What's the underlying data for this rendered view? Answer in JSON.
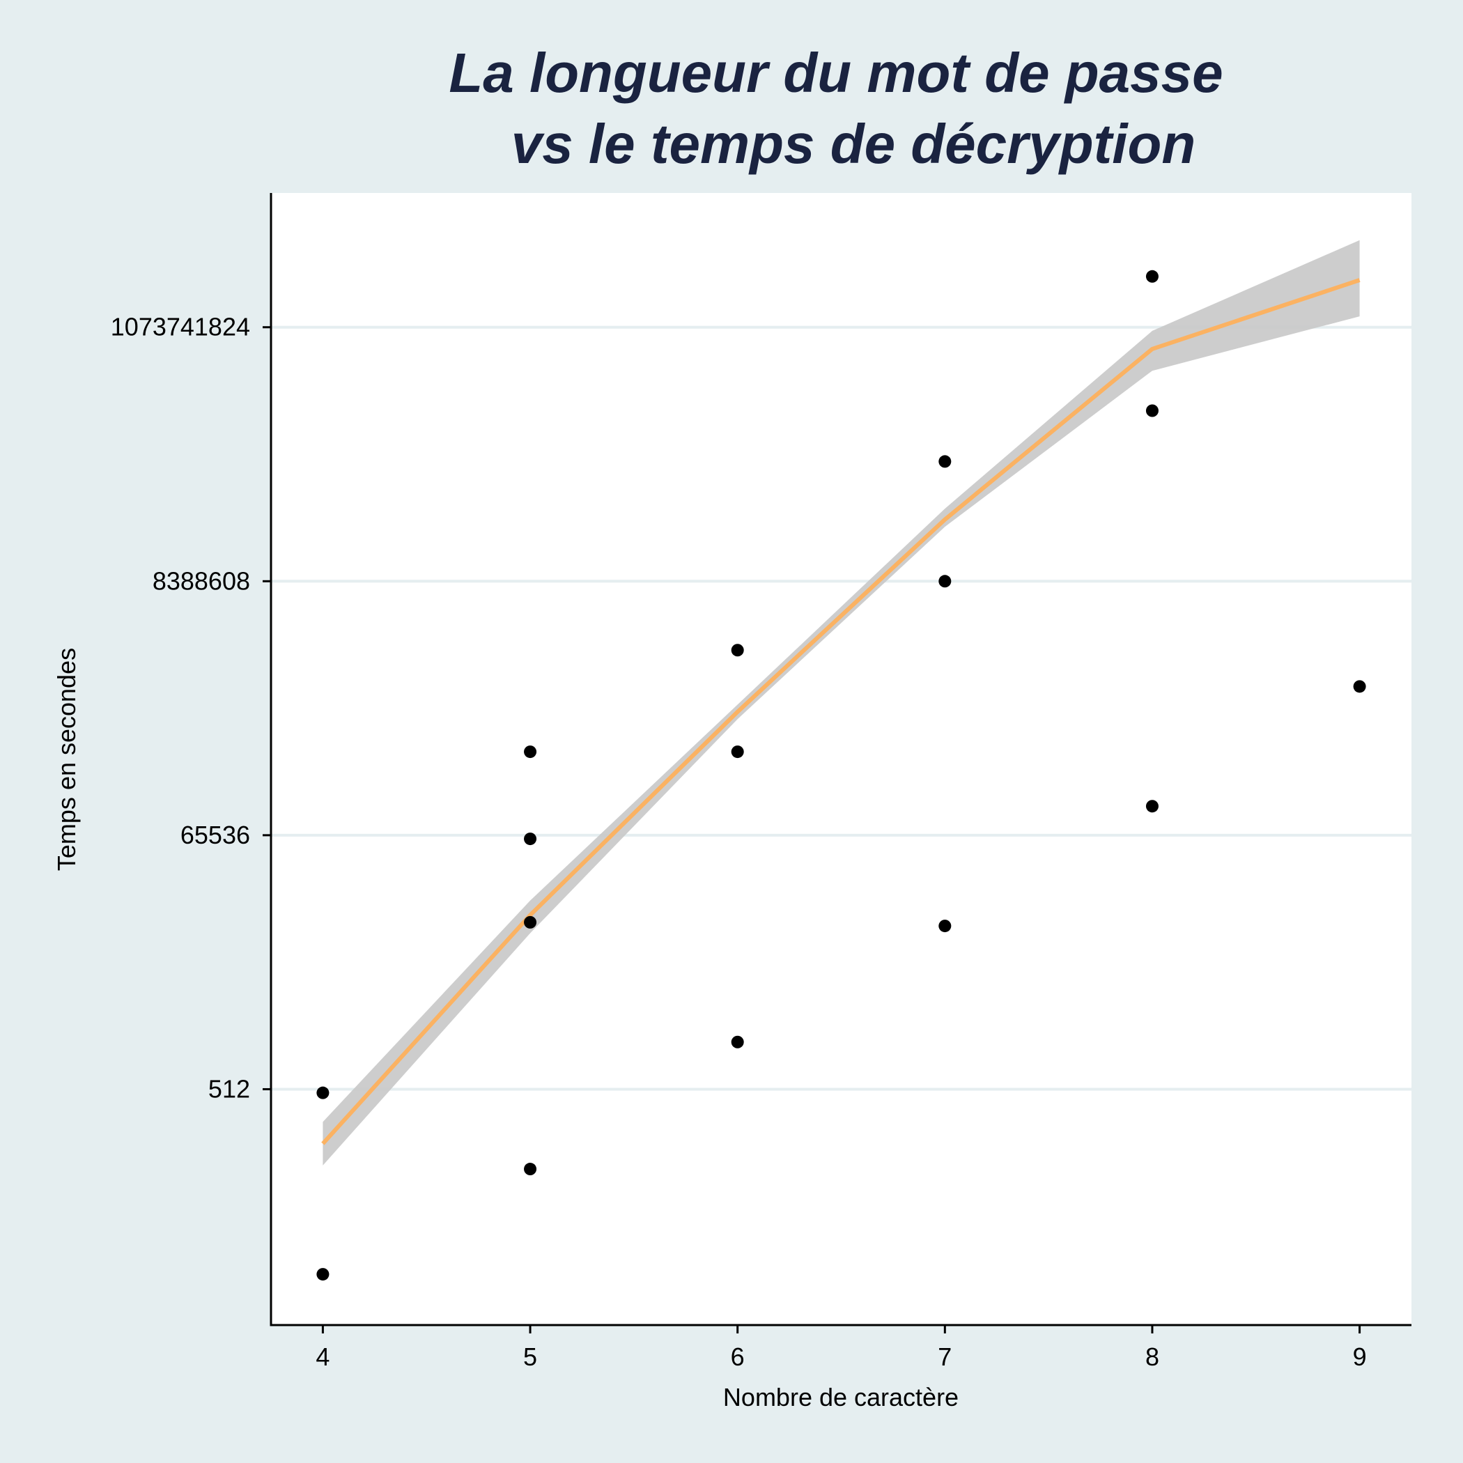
{
  "chart_data": {
    "type": "scatter",
    "title": [
      "La longueur du mot de passe",
      "vs le temps de décryption"
    ],
    "xlabel": "Nombre de caractère",
    "ylabel": "Temps en secondes",
    "x_ticks": [
      4,
      5,
      6,
      7,
      8,
      9
    ],
    "y_ticks": [
      {
        "label": "512",
        "log2": 9
      },
      {
        "label": "65536",
        "log2": 16
      },
      {
        "label": "8388608",
        "log2": 23
      },
      {
        "label": "1073741824",
        "log2": 30
      }
    ],
    "y_scale": "log2",
    "xlim": [
      3.75,
      9.25
    ],
    "ylim_log2": [
      2.5,
      33.7
    ],
    "grid": "horizontal",
    "series": [
      {
        "points": [
          {
            "x": 4,
            "log2_y": 3.9
          },
          {
            "x": 4,
            "log2_y": 8.9
          },
          {
            "x": 5,
            "log2_y": 6.8
          },
          {
            "x": 5,
            "log2_y": 13.6
          },
          {
            "x": 5,
            "log2_y": 15.9
          },
          {
            "x": 5,
            "log2_y": 18.3
          },
          {
            "x": 6,
            "log2_y": 10.3
          },
          {
            "x": 6,
            "log2_y": 18.3
          },
          {
            "x": 6,
            "log2_y": 21.1
          },
          {
            "x": 7,
            "log2_y": 13.5
          },
          {
            "x": 7,
            "log2_y": 23.0
          },
          {
            "x": 7,
            "log2_y": 26.3
          },
          {
            "x": 8,
            "log2_y": 16.8
          },
          {
            "x": 8,
            "log2_y": 27.7
          },
          {
            "x": 8,
            "log2_y": 31.4
          },
          {
            "x": 9,
            "log2_y": 20.1
          }
        ]
      }
    ],
    "fit": {
      "x": [
        4.0,
        5.0,
        6.0,
        7.0,
        8.0,
        9.0
      ],
      "log2_y": [
        7.5,
        13.8,
        19.4,
        24.7,
        29.4,
        31.3
      ],
      "ci_low": [
        6.9,
        13.3,
        19.2,
        24.5,
        28.8,
        30.3
      ],
      "ci_high": [
        8.1,
        14.2,
        19.6,
        25.0,
        29.9,
        32.4
      ]
    },
    "colors": {
      "background": "#e5eef0",
      "plot_bg": "#ffffff",
      "gridline": "#e5eef0",
      "points": "#000000",
      "fit_line": "#fbb262",
      "ci_band": "#c8c8c8",
      "title": "#1a2340"
    }
  }
}
